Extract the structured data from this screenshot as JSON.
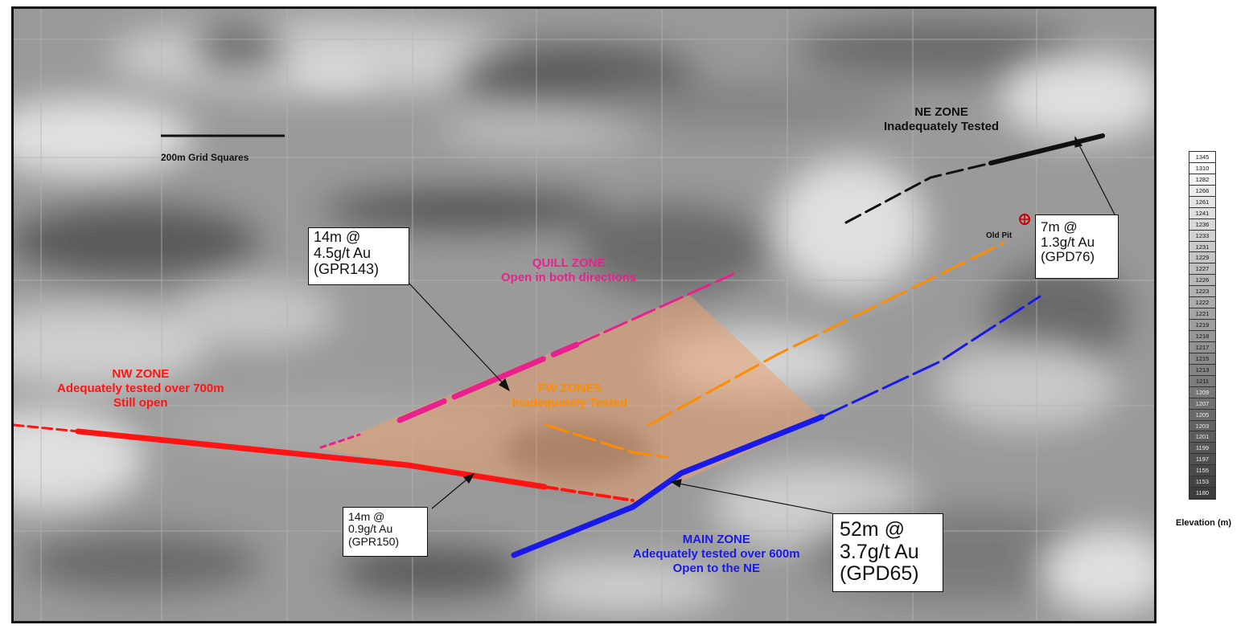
{
  "scale_bar": {
    "label": "200m Grid Squares"
  },
  "zones": {
    "ne": {
      "title": "NE ZONE",
      "subtitle": "Inadequately Tested",
      "color": "#111111"
    },
    "quill": {
      "title": "QUILL ZONE",
      "subtitle": "Open in both directions",
      "color": "#e8218c"
    },
    "nw": {
      "title": "NW ZONE",
      "line2": "Adequately tested over 700m",
      "line3": "Still open",
      "color": "#ff1414"
    },
    "fw": {
      "title": "FW ZONES",
      "subtitle": "Inadequately Tested",
      "color": "#ff8c00"
    },
    "main": {
      "title": "MAIN ZONE",
      "line2": "Adequately tested over 600m",
      "line3": "Open to the NE",
      "color": "#1a1ae6"
    }
  },
  "callouts": {
    "gpr143": {
      "line1": "14m @",
      "line2": "4.5g/t Au",
      "line3": "(GPR143)"
    },
    "gpd76": {
      "line1": "7m @",
      "line2": "1.3g/t Au",
      "line3": "(GPD76)"
    },
    "gpr150": {
      "line1": "14m @",
      "line2": "0.9g/t Au",
      "line3": "(GPR150)"
    },
    "gpd65": {
      "line1": "52m @",
      "line2": "3.7g/t Au",
      "line3": "(GPD65)"
    }
  },
  "old_pit": {
    "label": "Old Pit",
    "icon": "pit-symbol-icon"
  },
  "legend": {
    "title": "Elevation (m)",
    "values": [
      "1345",
      "1310",
      "1282",
      "1266",
      "1261",
      "1241",
      "1236",
      "1233",
      "1231",
      "1229",
      "1227",
      "1226",
      "1223",
      "1222",
      "1221",
      "1219",
      "1218",
      "1217",
      "1215",
      "1213",
      "1211",
      "1209",
      "1207",
      "1205",
      "1203",
      "1201",
      "1199",
      "1197",
      "1155",
      "1153",
      "1180"
    ]
  },
  "colors": {
    "shaded_area": "#e8a070"
  }
}
